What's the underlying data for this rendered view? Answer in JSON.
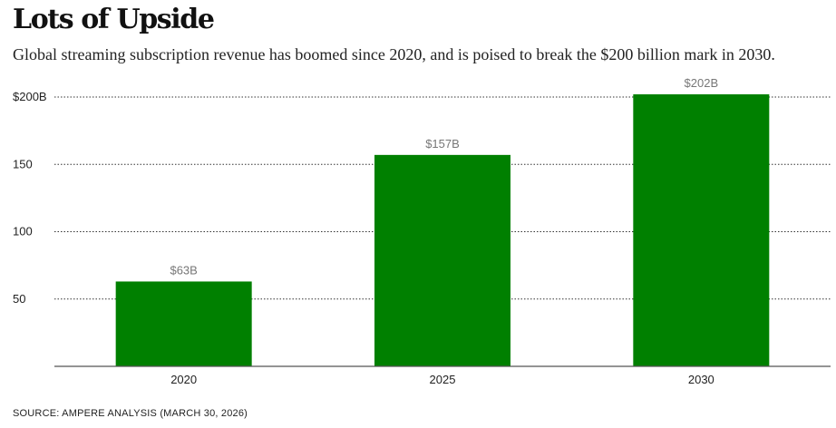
{
  "chart_data": {
    "type": "bar",
    "title": "Lots of Upside",
    "subtitle": "Global streaming subscription revenue has boomed since 2020, and is poised to break the $200 billion mark in 2030.",
    "categories": [
      "2020",
      "2025",
      "2030"
    ],
    "values": [
      63,
      157,
      202
    ],
    "data_labels": [
      "$63B",
      "$157B",
      "$202B"
    ],
    "xlabel": "",
    "ylabel": "",
    "ylim": [
      0,
      200
    ],
    "yticks": [
      50,
      100,
      150,
      200
    ],
    "ytick_labels": [
      "50",
      "100",
      "150",
      "$200B"
    ],
    "grid": "horizontal dotted",
    "bar_color": "#008000",
    "source": "SOURCE: AMPERE ANALYSIS (MARCH 30, 2026)"
  }
}
